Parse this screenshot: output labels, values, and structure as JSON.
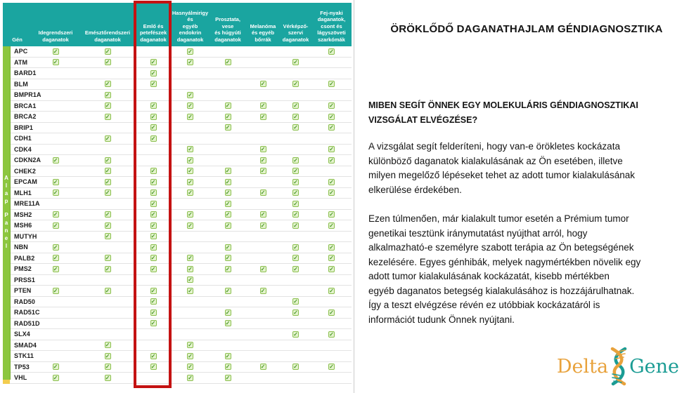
{
  "table": {
    "sidebar": {
      "line1": "Alap",
      "line2": "Panel"
    },
    "check_glyph": "✓",
    "columns": [
      "Gén",
      "Idegrendszeri\ndaganatok",
      "Emésztőrendszeri\ndaganatok",
      "Emlő és\npetefészek\ndaganatok",
      "Hasnyálmirigy\nés\negyéb\nendokrin\ndaganatok",
      "Prosztata,\nvese\nés húgyúti\ndaganatok",
      "Melanóma\nés egyéb\nbőrrák",
      "Vérképző-\nszervi\ndaganatok",
      "Fej-nyaki\ndaganatok,\ncsont és\nlágyszöveti\nszarkómák"
    ],
    "genes": [
      {
        "name": "APC",
        "checks": [
          1,
          1,
          0,
          1,
          0,
          0,
          0,
          1
        ]
      },
      {
        "name": "ATM",
        "checks": [
          1,
          1,
          1,
          1,
          1,
          0,
          1,
          0
        ]
      },
      {
        "name": "BARD1",
        "checks": [
          0,
          0,
          1,
          0,
          0,
          0,
          0,
          0
        ]
      },
      {
        "name": "BLM",
        "checks": [
          0,
          1,
          1,
          0,
          0,
          1,
          1,
          1
        ]
      },
      {
        "name": "BMPR1A",
        "checks": [
          0,
          1,
          0,
          1,
          0,
          0,
          0,
          0
        ]
      },
      {
        "name": "BRCA1",
        "checks": [
          0,
          1,
          1,
          1,
          1,
          1,
          1,
          1
        ]
      },
      {
        "name": "BRCA2",
        "checks": [
          0,
          1,
          1,
          1,
          1,
          1,
          1,
          1
        ]
      },
      {
        "name": "BRIP1",
        "checks": [
          0,
          0,
          1,
          0,
          1,
          0,
          1,
          1
        ]
      },
      {
        "name": "CDH1",
        "checks": [
          0,
          1,
          1,
          0,
          0,
          0,
          0,
          0
        ]
      },
      {
        "name": "CDK4",
        "checks": [
          0,
          0,
          0,
          1,
          0,
          1,
          0,
          1
        ]
      },
      {
        "name": "CDKN2A",
        "checks": [
          1,
          1,
          0,
          1,
          0,
          1,
          1,
          1
        ]
      },
      {
        "name": "CHEK2",
        "checks": [
          0,
          1,
          1,
          1,
          1,
          1,
          1,
          0
        ]
      },
      {
        "name": "EPCAM",
        "checks": [
          1,
          1,
          1,
          1,
          1,
          0,
          1,
          1
        ]
      },
      {
        "name": "MLH1",
        "checks": [
          1,
          1,
          1,
          1,
          1,
          1,
          1,
          1
        ]
      },
      {
        "name": "MRE11A",
        "checks": [
          0,
          0,
          1,
          0,
          1,
          0,
          1,
          0
        ]
      },
      {
        "name": "MSH2",
        "checks": [
          1,
          1,
          1,
          1,
          1,
          1,
          1,
          1
        ]
      },
      {
        "name": "MSH6",
        "checks": [
          1,
          1,
          1,
          1,
          1,
          1,
          1,
          1
        ]
      },
      {
        "name": "MUTYH",
        "checks": [
          0,
          1,
          1,
          0,
          0,
          0,
          0,
          0
        ]
      },
      {
        "name": "NBN",
        "checks": [
          1,
          0,
          1,
          0,
          1,
          0,
          1,
          1
        ]
      },
      {
        "name": "PALB2",
        "checks": [
          1,
          1,
          1,
          1,
          1,
          0,
          1,
          1
        ]
      },
      {
        "name": "PMS2",
        "checks": [
          1,
          1,
          1,
          1,
          1,
          1,
          1,
          1
        ]
      },
      {
        "name": "PRSS1",
        "checks": [
          0,
          0,
          0,
          1,
          0,
          0,
          0,
          0
        ]
      },
      {
        "name": "PTEN",
        "checks": [
          1,
          1,
          1,
          1,
          1,
          1,
          0,
          1
        ]
      },
      {
        "name": "RAD50",
        "checks": [
          0,
          0,
          1,
          0,
          0,
          0,
          1,
          0
        ]
      },
      {
        "name": "RAD51C",
        "checks": [
          0,
          0,
          1,
          0,
          1,
          0,
          1,
          1
        ]
      },
      {
        "name": "RAD51D",
        "checks": [
          0,
          0,
          1,
          0,
          1,
          0,
          0,
          0
        ]
      },
      {
        "name": "SLX4",
        "checks": [
          0,
          0,
          0,
          0,
          0,
          0,
          1,
          1
        ]
      },
      {
        "name": "SMAD4",
        "checks": [
          0,
          1,
          0,
          1,
          0,
          0,
          0,
          0
        ]
      },
      {
        "name": "STK11",
        "checks": [
          0,
          1,
          1,
          1,
          1,
          0,
          0,
          0
        ]
      },
      {
        "name": "TP53",
        "checks": [
          1,
          1,
          1,
          1,
          1,
          1,
          1,
          1
        ]
      },
      {
        "name": "VHL",
        "checks": [
          1,
          1,
          0,
          1,
          1,
          0,
          0,
          0
        ]
      }
    ],
    "highlighted_column": "Emlő és petefészek daganatok"
  },
  "content": {
    "title": "ÖRÖKLŐDŐ DAGANATHAJLAM GÉNDIAGNOSZTIKA",
    "subheading": "MIBEN SEGÍT ÖNNEK EGY MOLEKULÁRIS GÉNDIAGNOSZTIKAI\nVIZSGÁLAT ELVÉGZÉSE?",
    "paragraph1": "A vizsgálat segít felderíteni, hogy van-e örökletes kockázata\nkülönböző daganatok kialakulásának az Ön esetében, illetve\nmilyen megelőző lépéseket tehet az adott tumor kialakulásának\nelkerülése érdekében.",
    "paragraph2": "Ezen túlmenően, már kialakult tumor esetén a Prémium tumor\ngenetikai tesztünk iránymutatást nyújthat arról, hogy\nalkalmazható-e személyre szabott terápia az Ön betegségének\nkezelésére. Egyes génhibák, melyek nagymértékben növelik egy\nadott tumor kialakulásának kockázatát, kisebb mértékben\negyéb daganatos betegség kialakulásához is hozzájárulhatnak.\nÍgy a teszt elvégzése révén ez utóbbiak kockázatáról is\ninformációt tudunk Önnek nyújtani."
  },
  "logo": {
    "word1": "Delta",
    "word2": "Gene"
  },
  "colors": {
    "header_teal": "#1aa5a0",
    "strip_green": "#8cc63f",
    "strip_foot_yellow": "#f2cd4e",
    "check_green": "#4c9a2a",
    "highlight_red": "#c41212",
    "logo_orange": "#e8a23c",
    "logo_teal": "#1b9c94"
  }
}
